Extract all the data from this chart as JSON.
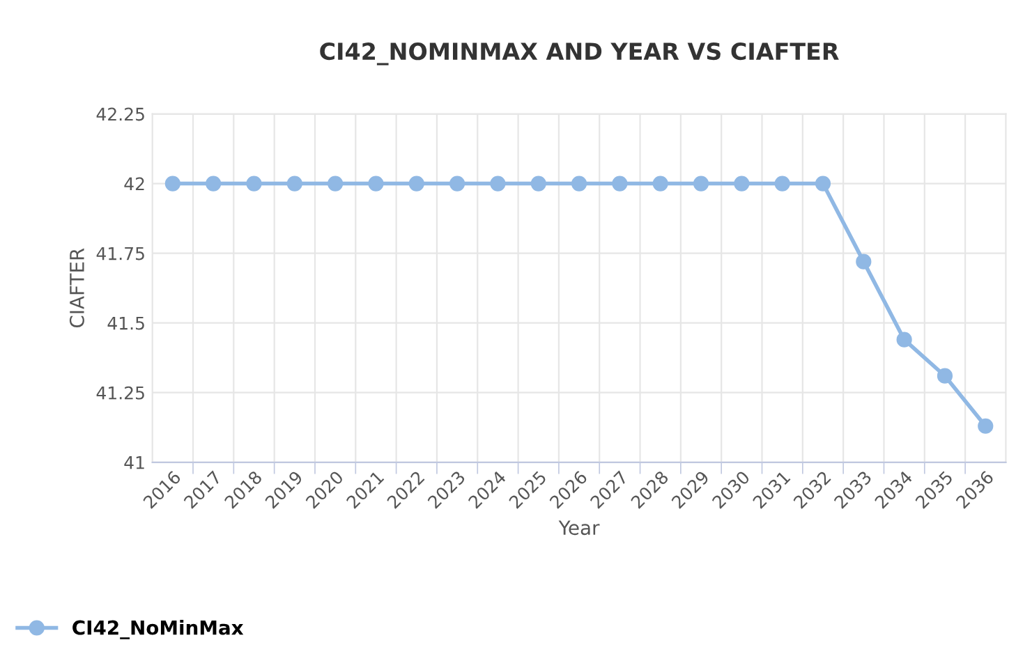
{
  "chart_data": {
    "type": "line",
    "title": "CI42_NOMINMAX AND YEAR VS CIAFTER",
    "xlabel": "Year",
    "ylabel": "CIAFTER",
    "categories": [
      "2016",
      "2017",
      "2018",
      "2019",
      "2020",
      "2021",
      "2022",
      "2023",
      "2024",
      "2025",
      "2026",
      "2027",
      "2028",
      "2029",
      "2030",
      "2031",
      "2032",
      "2033",
      "2034",
      "2035",
      "2036"
    ],
    "series": [
      {
        "name": "CI42_NoMinMax",
        "color": "#90b8e4",
        "values": [
          42,
          42,
          42,
          42,
          42,
          42,
          42,
          42,
          42,
          42,
          42,
          42,
          42,
          42,
          42,
          42,
          42,
          41.72,
          41.44,
          41.31,
          41.13
        ]
      }
    ],
    "ylim": [
      41,
      42.25
    ],
    "yticks": [
      41,
      41.25,
      41.5,
      41.75,
      42,
      42.25
    ],
    "grid": true,
    "legend": "bottom left",
    "marker": "circle",
    "line_style": "solid"
  }
}
